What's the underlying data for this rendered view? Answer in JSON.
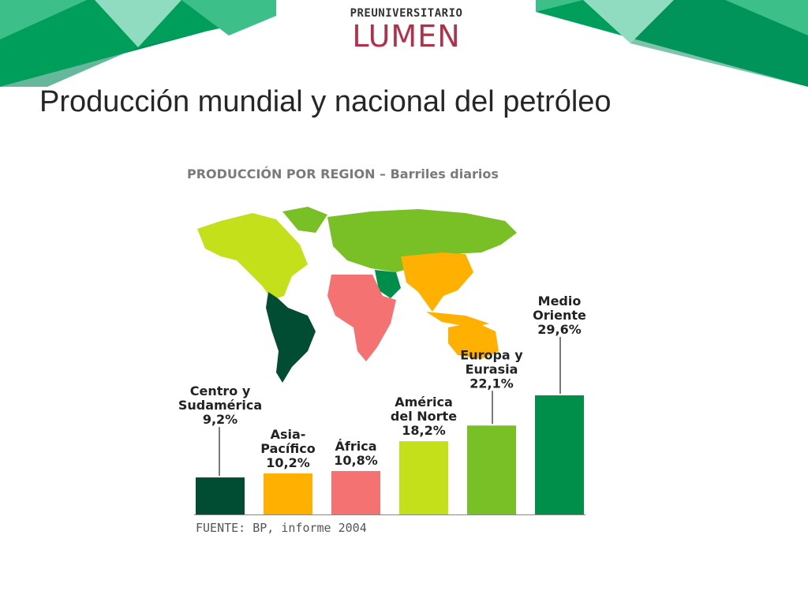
{
  "logo": {
    "top_text": "PREUNIVERSITARIO",
    "main_text": "LUMEN"
  },
  "slide": {
    "title": "Producción mundial y nacional del petróleo"
  },
  "colors": {
    "banner_dark": "#009e5b",
    "banner_mid": "#3dbf8a",
    "banner_light": "#8fdcc0",
    "logo_red": "#b3304a"
  },
  "chart_data": {
    "type": "bar",
    "title": "PRODUCCIÓN POR REGION – Barriles diarios",
    "source": "FUENTE: BP, informe 2004",
    "unit": "%",
    "ylim": [
      0,
      30
    ],
    "xlabel": "",
    "ylabel": "",
    "grid": false,
    "categories": [
      "Centro y Sudamérica",
      "Asia-Pacífico",
      "África",
      "América del Norte",
      "Europa y Eurasia",
      "Medio Oriente"
    ],
    "values": [
      9.2,
      10.2,
      10.8,
      18.2,
      22.1,
      29.6
    ],
    "bar_colors": [
      "#004d33",
      "#ffb000",
      "#f47272",
      "#c4e01a",
      "#78c025",
      "#008f4a"
    ],
    "labels": [
      [
        "Centro y",
        "Sudamérica",
        "9,2%"
      ],
      [
        "Asia-",
        "Pacífico",
        "10,2%"
      ],
      [
        "África",
        "10,8%"
      ],
      [
        "América",
        "del Norte",
        "18,2%"
      ],
      [
        "Europa y",
        "Eurasia",
        "22,1%"
      ],
      [
        "Medio",
        "Oriente",
        "29,6%"
      ]
    ]
  }
}
